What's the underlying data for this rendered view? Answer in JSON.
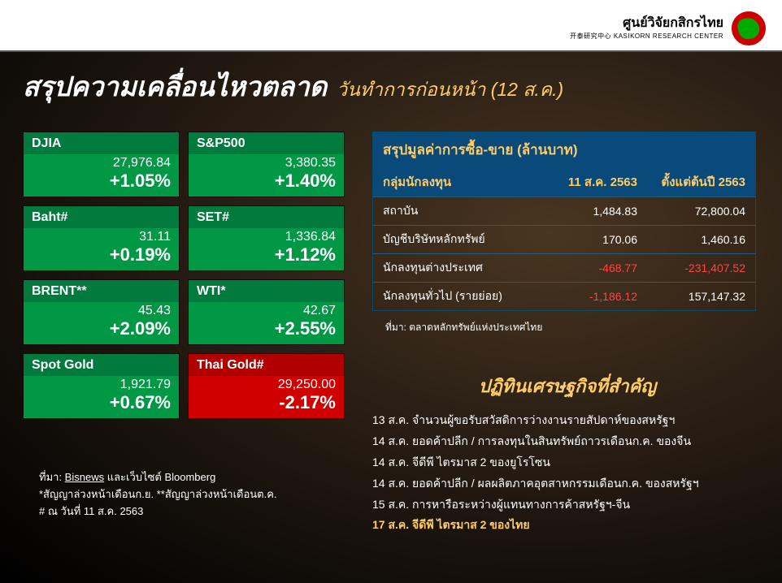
{
  "logo": {
    "th": "ศูนย์วิจัยกสิกรไทย",
    "cn": "开泰研究中心",
    "en": "KASIKORN RESEARCH CENTER"
  },
  "title": "สรุปความเคลื่อนไหวตลาด",
  "subtitle": "วันทำการก่อนหน้า (12 ส.ค.)",
  "cards": [
    {
      "name": "DJIA",
      "value": "27,976.84",
      "change": "+1.05%",
      "dir": "up",
      "head_bg": "#007a3d",
      "body_bg": "#009845"
    },
    {
      "name": "S&P500",
      "value": "3,380.35",
      "change": "+1.40%",
      "dir": "up",
      "head_bg": "#007a3d",
      "body_bg": "#009845"
    },
    {
      "name": "Baht#",
      "value": "31.11",
      "change": "+0.19%",
      "dir": "up",
      "head_bg": "#007a3d",
      "body_bg": "#009845"
    },
    {
      "name": "SET#",
      "value": "1,336.84",
      "change": "+1.12%",
      "dir": "up",
      "head_bg": "#007a3d",
      "body_bg": "#009845"
    },
    {
      "name": "BRENT**",
      "value": "45.43",
      "change": "+2.09%",
      "dir": "up",
      "head_bg": "#007a3d",
      "body_bg": "#009845"
    },
    {
      "name": "WTI*",
      "value": "42.67",
      "change": "+2.55%",
      "dir": "up",
      "head_bg": "#007a3d",
      "body_bg": "#009845"
    },
    {
      "name": "Spot Gold",
      "value": "1,921.79",
      "change": "+0.67%",
      "dir": "up",
      "head_bg": "#007a3d",
      "body_bg": "#009845"
    },
    {
      "name": "Thai Gold#",
      "value": "29,250.00",
      "change": "-2.17%",
      "dir": "down",
      "head_bg": "#b00000",
      "body_bg": "#d00000"
    }
  ],
  "footnote": {
    "l1a": "ที่มา: ",
    "l1b": "Bisnews",
    "l1c": " และเว็บไซต์ Bloomberg",
    "l2": "*สัญญาล่วงหน้าเดือนก.ย. **สัญญาล่วงหน้าเดือนต.ค.",
    "l3": "# ณ วันที่ 11 ส.ค. 2563"
  },
  "trade": {
    "title": "สรุปมูลค่าการซื้อ-ขาย (ล้านบาท)",
    "head": {
      "c1": "กลุ่มนักลงทุน",
      "c2": "11 ส.ค. 2563",
      "c3": "ตั้งแต่ต้นปี 2563"
    },
    "rows": [
      {
        "c1": "สถาบัน",
        "c2": "1,484.83",
        "c2neg": false,
        "c3": "72,800.04",
        "c3neg": false
      },
      {
        "c1": "บัญชีบริษัทหลักทรัพย์",
        "c2": "170.06",
        "c2neg": false,
        "c3": "1,460.16",
        "c3neg": false
      },
      {
        "c1": "นักลงทุนต่างประเทศ",
        "c2": "-468.77",
        "c2neg": true,
        "c3": "-231,407.52",
        "c3neg": true
      },
      {
        "c1": "นักลงทุนทั่วไป (รายย่อย)",
        "c2": "-1,186.12",
        "c2neg": true,
        "c3": "157,147.32",
        "c3neg": false
      }
    ],
    "source": "ที่มา: ตลาดหลักทรัพย์แห่งประเทศไทย",
    "colors": {
      "header_bg": "#0a4a7a",
      "header_text": "#ffcc66",
      "border": "#2a5a7a",
      "neg": "#ff4444"
    }
  },
  "calendar": {
    "title": "ปฏิทินเศรษฐกิจที่สำคัญ",
    "items": [
      {
        "text": "13 ส.ค. จำนวนผู้ขอรับสวัสดิการว่างงานรายสัปดาห์ของสหรัฐฯ",
        "hl": false
      },
      {
        "text": "14 ส.ค. ยอดค้าปลีก / การลงทุนในสินทรัพย์ถาวรเดือนก.ค. ของจีน",
        "hl": false
      },
      {
        "text": "14 ส.ค. จีดีพี ไตรมาส 2 ของยูโรโซน",
        "hl": false
      },
      {
        "text": "14 ส.ค. ยอดค้าปลีก / ผลผลิตภาคอุตสาหกรรมเดือนก.ค. ของสหรัฐฯ",
        "hl": false
      },
      {
        "text": "15 ส.ค. การหารือระหว่างผู้แทนทางการค้าสหรัฐฯ-จีน",
        "hl": false
      },
      {
        "text": "17 ส.ค. จีดีพี ไตรมาส 2 ของไทย",
        "hl": true
      }
    ],
    "title_color": "#ffcc66",
    "hl_color": "#ffcc66"
  },
  "styling": {
    "page_bg_gradient": [
      "#4a3520",
      "#2a1f15",
      "#000000"
    ],
    "title_color": "#ffffff",
    "subtitle_color": "#ffcc66",
    "card_up_head": "#007a3d",
    "card_up_body": "#009845",
    "card_down_head": "#b00000",
    "card_down_body": "#d00000",
    "card_text": "#ffffff",
    "font_family": "Arial, Tahoma, sans-serif"
  }
}
